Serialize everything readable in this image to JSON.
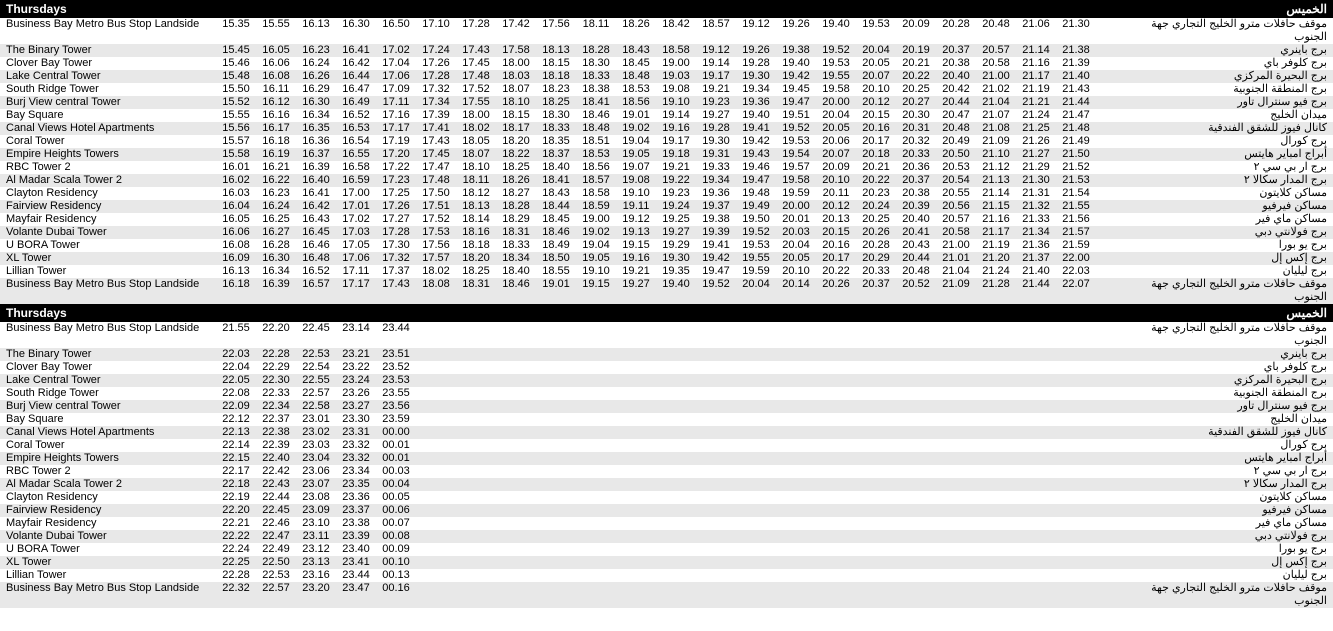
{
  "blocks": [
    {
      "header_en": "Thursdays",
      "header_ar": "الخميس",
      "time_cols": 22,
      "rows": [
        {
          "en": "Business Bay Metro Bus Stop Landside",
          "ar": "موقف حافلات مترو الخليج التجاري جهة الجنوب",
          "times": [
            "15.35",
            "15.55",
            "16.13",
            "16.30",
            "16.50",
            "17.10",
            "17.28",
            "17.42",
            "17.56",
            "18.11",
            "18.26",
            "18.42",
            "18.57",
            "19.12",
            "19.26",
            "19.40",
            "19.53",
            "20.09",
            "20.28",
            "20.48",
            "21.06",
            "21.30"
          ]
        },
        {
          "en": "The Binary Tower",
          "ar": "برج باينري",
          "times": [
            "15.45",
            "16.05",
            "16.23",
            "16.41",
            "17.02",
            "17.24",
            "17.43",
            "17.58",
            "18.13",
            "18.28",
            "18.43",
            "18.58",
            "19.12",
            "19.26",
            "19.38",
            "19.52",
            "20.04",
            "20.19",
            "20.37",
            "20.57",
            "21.14",
            "21.38"
          ]
        },
        {
          "en": "Clover Bay Tower",
          "ar": "برج كلوفر باي",
          "times": [
            "15.46",
            "16.06",
            "16.24",
            "16.42",
            "17.04",
            "17.26",
            "17.45",
            "18.00",
            "18.15",
            "18.30",
            "18.45",
            "19.00",
            "19.14",
            "19.28",
            "19.40",
            "19.53",
            "20.05",
            "20.21",
            "20.38",
            "20.58",
            "21.16",
            "21.39"
          ]
        },
        {
          "en": "Lake Central Tower",
          "ar": "برج البحيرة المركزي",
          "times": [
            "15.48",
            "16.08",
            "16.26",
            "16.44",
            "17.06",
            "17.28",
            "17.48",
            "18.03",
            "18.18",
            "18.33",
            "18.48",
            "19.03",
            "19.17",
            "19.30",
            "19.42",
            "19.55",
            "20.07",
            "20.22",
            "20.40",
            "21.00",
            "21.17",
            "21.40"
          ]
        },
        {
          "en": "South Ridge Tower",
          "ar": "برج المنطقة الجنوبية",
          "times": [
            "15.50",
            "16.11",
            "16.29",
            "16.47",
            "17.09",
            "17.32",
            "17.52",
            "18.07",
            "18.23",
            "18.38",
            "18.53",
            "19.08",
            "19.21",
            "19.34",
            "19.45",
            "19.58",
            "20.10",
            "20.25",
            "20.42",
            "21.02",
            "21.19",
            "21.43"
          ]
        },
        {
          "en": "Burj View central Tower",
          "ar": "برج فيو سنترال تاور",
          "times": [
            "15.52",
            "16.12",
            "16.30",
            "16.49",
            "17.11",
            "17.34",
            "17.55",
            "18.10",
            "18.25",
            "18.41",
            "18.56",
            "19.10",
            "19.23",
            "19.36",
            "19.47",
            "20.00",
            "20.12",
            "20.27",
            "20.44",
            "21.04",
            "21.21",
            "21.44"
          ]
        },
        {
          "en": "Bay Square",
          "ar": "ميدان الخليج",
          "times": [
            "15.55",
            "16.16",
            "16.34",
            "16.52",
            "17.16",
            "17.39",
            "18.00",
            "18.15",
            "18.30",
            "18.46",
            "19.01",
            "19.14",
            "19.27",
            "19.40",
            "19.51",
            "20.04",
            "20.15",
            "20.30",
            "20.47",
            "21.07",
            "21.24",
            "21.47"
          ]
        },
        {
          "en": "Canal Views Hotel Apartments",
          "ar": "كانال فيوز للشقق الفندقية",
          "times": [
            "15.56",
            "16.17",
            "16.35",
            "16.53",
            "17.17",
            "17.41",
            "18.02",
            "18.17",
            "18.33",
            "18.48",
            "19.02",
            "19.16",
            "19.28",
            "19.41",
            "19.52",
            "20.05",
            "20.16",
            "20.31",
            "20.48",
            "21.08",
            "21.25",
            "21.48"
          ]
        },
        {
          "en": "Coral Tower",
          "ar": "برج كورال",
          "times": [
            "15.57",
            "16.18",
            "16.36",
            "16.54",
            "17.19",
            "17.43",
            "18.05",
            "18.20",
            "18.35",
            "18.51",
            "19.04",
            "19.17",
            "19.30",
            "19.42",
            "19.53",
            "20.06",
            "20.17",
            "20.32",
            "20.49",
            "21.09",
            "21.26",
            "21.49"
          ]
        },
        {
          "en": "Empire Heights Towers",
          "ar": "أبراج امباير هايتس",
          "times": [
            "15.58",
            "16.19",
            "16.37",
            "16.55",
            "17.20",
            "17.45",
            "18.07",
            "18.22",
            "18.37",
            "18.53",
            "19.05",
            "19.18",
            "19.31",
            "19.43",
            "19.54",
            "20.07",
            "20.18",
            "20.33",
            "20.50",
            "21.10",
            "21.27",
            "21.50"
          ]
        },
        {
          "en": "RBC Tower 2",
          "ar": "برج ار بي سي ٢",
          "times": [
            "16.01",
            "16.21",
            "16.39",
            "16.58",
            "17.22",
            "17.47",
            "18.10",
            "18.25",
            "18.40",
            "18.56",
            "19.07",
            "19.21",
            "19.33",
            "19.46",
            "19.57",
            "20.09",
            "20.21",
            "20.36",
            "20.53",
            "21.12",
            "21.29",
            "21.52"
          ]
        },
        {
          "en": "Al Madar Scala Tower 2",
          "ar": "برج المدار سكالا ٢",
          "times": [
            "16.02",
            "16.22",
            "16.40",
            "16.59",
            "17.23",
            "17.48",
            "18.11",
            "18.26",
            "18.41",
            "18.57",
            "19.08",
            "19.22",
            "19.34",
            "19.47",
            "19.58",
            "20.10",
            "20.22",
            "20.37",
            "20.54",
            "21.13",
            "21.30",
            "21.53"
          ]
        },
        {
          "en": "Clayton Residency",
          "ar": "مساكن كلايتون",
          "times": [
            "16.03",
            "16.23",
            "16.41",
            "17.00",
            "17.25",
            "17.50",
            "18.12",
            "18.27",
            "18.43",
            "18.58",
            "19.10",
            "19.23",
            "19.36",
            "19.48",
            "19.59",
            "20.11",
            "20.23",
            "20.38",
            "20.55",
            "21.14",
            "21.31",
            "21.54"
          ]
        },
        {
          "en": "Fairview Residency",
          "ar": "مساكن فيرفيو",
          "times": [
            "16.04",
            "16.24",
            "16.42",
            "17.01",
            "17.26",
            "17.51",
            "18.13",
            "18.28",
            "18.44",
            "18.59",
            "19.11",
            "19.24",
            "19.37",
            "19.49",
            "20.00",
            "20.12",
            "20.24",
            "20.39",
            "20.56",
            "21.15",
            "21.32",
            "21.55"
          ]
        },
        {
          "en": "Mayfair Residency",
          "ar": "مساكن ماي فير",
          "times": [
            "16.05",
            "16.25",
            "16.43",
            "17.02",
            "17.27",
            "17.52",
            "18.14",
            "18.29",
            "18.45",
            "19.00",
            "19.12",
            "19.25",
            "19.38",
            "19.50",
            "20.01",
            "20.13",
            "20.25",
            "20.40",
            "20.57",
            "21.16",
            "21.33",
            "21.56"
          ]
        },
        {
          "en": "Volante Dubai Tower",
          "ar": "برج فولانتي دبي",
          "times": [
            "16.06",
            "16.27",
            "16.45",
            "17.03",
            "17.28",
            "17.53",
            "18.16",
            "18.31",
            "18.46",
            "19.02",
            "19.13",
            "19.27",
            "19.39",
            "19.52",
            "20.03",
            "20.15",
            "20.26",
            "20.41",
            "20.58",
            "21.17",
            "21.34",
            "21.57"
          ]
        },
        {
          "en": "U BORA Tower",
          "ar": "برج يو بورا",
          "times": [
            "16.08",
            "16.28",
            "16.46",
            "17.05",
            "17.30",
            "17.56",
            "18.18",
            "18.33",
            "18.49",
            "19.04",
            "19.15",
            "19.29",
            "19.41",
            "19.53",
            "20.04",
            "20.16",
            "20.28",
            "20.43",
            "21.00",
            "21.19",
            "21.36",
            "21.59"
          ]
        },
        {
          "en": "XL Tower",
          "ar": "برج إكس إل",
          "times": [
            "16.09",
            "16.30",
            "16.48",
            "17.06",
            "17.32",
            "17.57",
            "18.20",
            "18.34",
            "18.50",
            "19.05",
            "19.16",
            "19.30",
            "19.42",
            "19.55",
            "20.05",
            "20.17",
            "20.29",
            "20.44",
            "21.01",
            "21.20",
            "21.37",
            "22.00"
          ]
        },
        {
          "en": "Lillian Tower",
          "ar": "برج ليليان",
          "times": [
            "16.13",
            "16.34",
            "16.52",
            "17.11",
            "17.37",
            "18.02",
            "18.25",
            "18.40",
            "18.55",
            "19.10",
            "19.21",
            "19.35",
            "19.47",
            "19.59",
            "20.10",
            "20.22",
            "20.33",
            "20.48",
            "21.04",
            "21.24",
            "21.40",
            "22.03"
          ]
        },
        {
          "en": "Business Bay Metro Bus Stop Landside",
          "ar": "موقف حافلات مترو الخليج التجاري جهة الجنوب",
          "times": [
            "16.18",
            "16.39",
            "16.57",
            "17.17",
            "17.43",
            "18.08",
            "18.31",
            "18.46",
            "19.01",
            "19.15",
            "19.27",
            "19.40",
            "19.52",
            "20.04",
            "20.14",
            "20.26",
            "20.37",
            "20.52",
            "21.09",
            "21.28",
            "21.44",
            "22.07"
          ]
        }
      ]
    },
    {
      "header_en": "Thursdays",
      "header_ar": "الخميس",
      "time_cols": 5,
      "rows": [
        {
          "en": "Business Bay Metro Bus Stop Landside",
          "ar": "موقف حافلات مترو الخليج التجاري جهة الجنوب",
          "times": [
            "21.55",
            "22.20",
            "22.45",
            "23.14",
            "23.44"
          ]
        },
        {
          "en": "The Binary Tower",
          "ar": "برج باينري",
          "times": [
            "22.03",
            "22.28",
            "22.53",
            "23.21",
            "23.51"
          ]
        },
        {
          "en": "Clover Bay Tower",
          "ar": "برج كلوفر باي",
          "times": [
            "22.04",
            "22.29",
            "22.54",
            "23.22",
            "23.52"
          ]
        },
        {
          "en": "Lake Central Tower",
          "ar": "برج البحيرة المركزي",
          "times": [
            "22.05",
            "22.30",
            "22.55",
            "23.24",
            "23.53"
          ]
        },
        {
          "en": "South Ridge Tower",
          "ar": "برج المنطقة الجنوبية",
          "times": [
            "22.08",
            "22.33",
            "22.57",
            "23.26",
            "23.55"
          ]
        },
        {
          "en": "Burj View central Tower",
          "ar": "برج فيو سنترال تاور",
          "times": [
            "22.09",
            "22.34",
            "22.58",
            "23.27",
            "23.56"
          ]
        },
        {
          "en": "Bay Square",
          "ar": "ميدان الخليج",
          "times": [
            "22.12",
            "22.37",
            "23.01",
            "23.30",
            "23.59"
          ]
        },
        {
          "en": "Canal Views Hotel Apartments",
          "ar": "كانال فيوز للشقق الفندقية",
          "times": [
            "22.13",
            "22.38",
            "23.02",
            "23.31",
            "00.00"
          ]
        },
        {
          "en": "Coral Tower",
          "ar": "برج كورال",
          "times": [
            "22.14",
            "22.39",
            "23.03",
            "23.32",
            "00.01"
          ]
        },
        {
          "en": "Empire Heights Towers",
          "ar": "أبراج امباير هايتس",
          "times": [
            "22.15",
            "22.40",
            "23.04",
            "23.32",
            "00.01"
          ]
        },
        {
          "en": "RBC Tower 2",
          "ar": "برج ار بي سي ٢",
          "times": [
            "22.17",
            "22.42",
            "23.06",
            "23.34",
            "00.03"
          ]
        },
        {
          "en": "Al Madar Scala Tower 2",
          "ar": "برج المدار سكالا ٢",
          "times": [
            "22.18",
            "22.43",
            "23.07",
            "23.35",
            "00.04"
          ]
        },
        {
          "en": "Clayton Residency",
          "ar": "مساكن كلايتون",
          "times": [
            "22.19",
            "22.44",
            "23.08",
            "23.36",
            "00.05"
          ]
        },
        {
          "en": "Fairview Residency",
          "ar": "مساكن فيرفيو",
          "times": [
            "22.20",
            "22.45",
            "23.09",
            "23.37",
            "00.06"
          ]
        },
        {
          "en": "Mayfair Residency",
          "ar": "مساكن ماي فير",
          "times": [
            "22.21",
            "22.46",
            "23.10",
            "23.38",
            "00.07"
          ]
        },
        {
          "en": "Volante Dubai Tower",
          "ar": "برج فولانتي دبي",
          "times": [
            "22.22",
            "22.47",
            "23.11",
            "23.39",
            "00.08"
          ]
        },
        {
          "en": "U BORA Tower",
          "ar": "برج يو بورا",
          "times": [
            "22.24",
            "22.49",
            "23.12",
            "23.40",
            "00.09"
          ]
        },
        {
          "en": "XL Tower",
          "ar": "برج إكس إل",
          "times": [
            "22.25",
            "22.50",
            "23.13",
            "23.41",
            "00.10"
          ]
        },
        {
          "en": "Lillian Tower",
          "ar": "برج ليليان",
          "times": [
            "22.28",
            "22.53",
            "23.16",
            "23.44",
            "00.13"
          ]
        },
        {
          "en": "Business Bay Metro Bus Stop Landside",
          "ar": "موقف حافلات مترو الخليج التجاري جهة الجنوب",
          "times": [
            "22.32",
            "22.57",
            "23.20",
            "23.47",
            "00.16"
          ]
        }
      ]
    }
  ]
}
